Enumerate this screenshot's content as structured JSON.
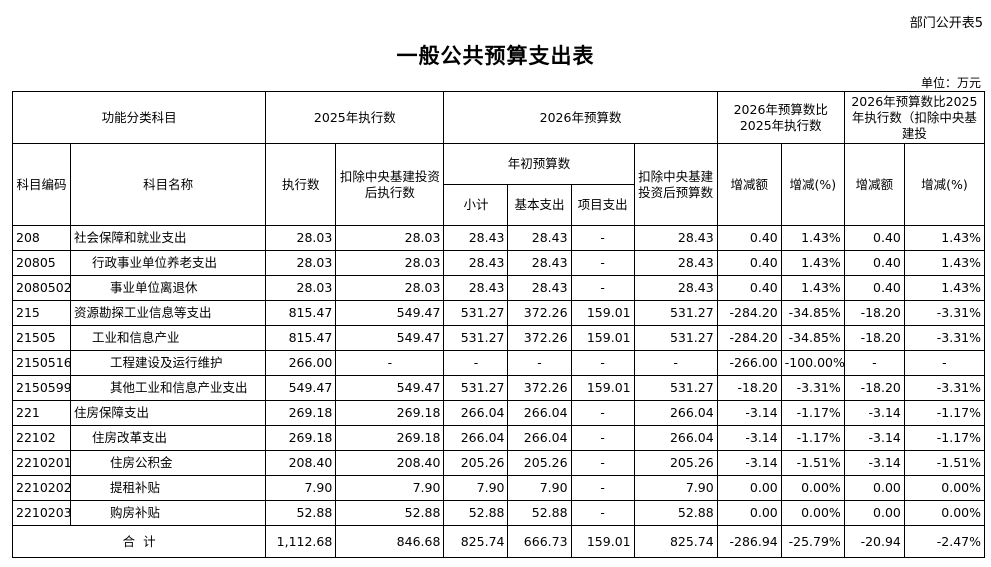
{
  "header": {
    "note": "部门公开表5",
    "title": "一般公共预算支出表",
    "unit": "单位：万元"
  },
  "table": {
    "head": {
      "category": "功能分类科目",
      "exec_2025": "2025年执行数",
      "budget_2026": "2026年预算数",
      "compare": "2026年预算数比2025年执行数",
      "compare_excl": "2026年预算数比2025年执行数（扣除中央基建投",
      "code": "科目编码",
      "name": "科目名称",
      "exec": "执行数",
      "exec_excl": "扣除中央基建投资后执行数",
      "initial": "年初预算数",
      "budget_excl": "扣除中央基建投资后预算数",
      "diff": "增减额",
      "pct": "增减(%)",
      "diff2": "增减额",
      "pct2": "增减(%)",
      "subtotal": "小计",
      "basic": "基本支出",
      "project": "项目支出"
    },
    "rows": [
      [
        "208",
        "社会保障和就业支出",
        "28.03",
        "28.03",
        "28.43",
        "28.43",
        "-",
        "28.43",
        "0.40",
        "1.43%",
        "0.40",
        "1.43%"
      ],
      [
        "20805",
        "行政事业单位养老支出",
        "28.03",
        "28.03",
        "28.43",
        "28.43",
        "-",
        "28.43",
        "0.40",
        "1.43%",
        "0.40",
        "1.43%"
      ],
      [
        "2080502",
        "事业单位离退休",
        "28.03",
        "28.03",
        "28.43",
        "28.43",
        "-",
        "28.43",
        "0.40",
        "1.43%",
        "0.40",
        "1.43%"
      ],
      [
        "215",
        "资源勘探工业信息等支出",
        "815.47",
        "549.47",
        "531.27",
        "372.26",
        "159.01",
        "531.27",
        "-284.20",
        "-34.85%",
        "-18.20",
        "-3.31%"
      ],
      [
        "21505",
        "工业和信息产业",
        "815.47",
        "549.47",
        "531.27",
        "372.26",
        "159.01",
        "531.27",
        "-284.20",
        "-34.85%",
        "-18.20",
        "-3.31%"
      ],
      [
        "2150516",
        "工程建设及运行维护",
        "266.00",
        "-",
        "-",
        "-",
        "-",
        "-",
        "-266.00",
        "-100.00%",
        "-",
        "-"
      ],
      [
        "2150599",
        "其他工业和信息产业支出",
        "549.47",
        "549.47",
        "531.27",
        "372.26",
        "159.01",
        "531.27",
        "-18.20",
        "-3.31%",
        "-18.20",
        "-3.31%"
      ],
      [
        "221",
        "住房保障支出",
        "269.18",
        "269.18",
        "266.04",
        "266.04",
        "-",
        "266.04",
        "-3.14",
        "-1.17%",
        "-3.14",
        "-1.17%"
      ],
      [
        "22102",
        "住房改革支出",
        "269.18",
        "269.18",
        "266.04",
        "266.04",
        "-",
        "266.04",
        "-3.14",
        "-1.17%",
        "-3.14",
        "-1.17%"
      ],
      [
        "2210201",
        "住房公积金",
        "208.40",
        "208.40",
        "205.26",
        "205.26",
        "-",
        "205.26",
        "-3.14",
        "-1.51%",
        "-3.14",
        "-1.51%"
      ],
      [
        "2210202",
        "提租补贴",
        "7.90",
        "7.90",
        "7.90",
        "7.90",
        "-",
        "7.90",
        "0.00",
        "0.00%",
        "0.00",
        "0.00%"
      ],
      [
        "2210203",
        "购房补贴",
        "52.88",
        "52.88",
        "52.88",
        "52.88",
        "-",
        "52.88",
        "0.00",
        "0.00%",
        "0.00",
        "0.00%"
      ]
    ],
    "total": [
      "合  计",
      "1,112.68",
      "846.68",
      "825.74",
      "666.73",
      "159.01",
      "825.74",
      "-286.94",
      "-25.79%",
      "-20.94",
      "-2.47%"
    ]
  }
}
